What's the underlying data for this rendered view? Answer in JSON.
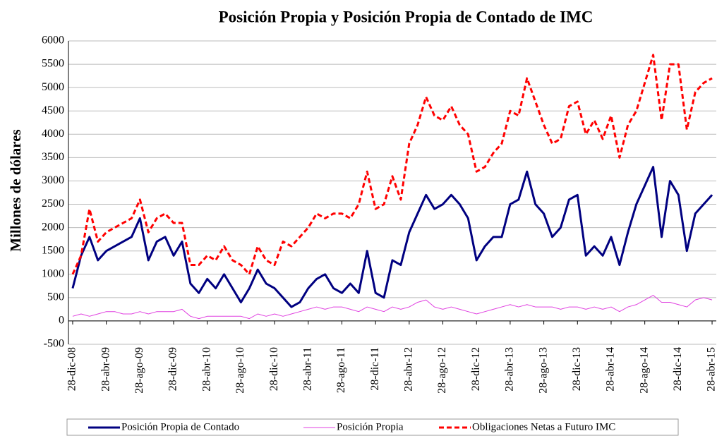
{
  "chart_data": {
    "type": "line",
    "title": "Posición Propia y Posición Propia de Contado de IMC",
    "y_label": "Millones de dólares",
    "categories": [
      "28-dic-08",
      null,
      null,
      null,
      "28-abr-09",
      null,
      null,
      null,
      "28-ago-09",
      null,
      null,
      null,
      "28-dic-09",
      null,
      null,
      null,
      "28-abr-10",
      null,
      null,
      null,
      "28-ago-10",
      null,
      null,
      null,
      "28-dic-10",
      null,
      null,
      null,
      "28-abr-11",
      null,
      null,
      null,
      "28-ago-11",
      null,
      null,
      null,
      "28-dic-11",
      null,
      null,
      null,
      "28-abr-12",
      null,
      null,
      null,
      "28-ago-12",
      null,
      null,
      null,
      "28-dic-12",
      null,
      null,
      null,
      "28-abr-13",
      null,
      null,
      null,
      "28-ago-13",
      null,
      null,
      null,
      "28-dic-13",
      null,
      null,
      null,
      "28-abr-14",
      null,
      null,
      null,
      "28-ago-14",
      null,
      null,
      null,
      "28-dic-14",
      null,
      null,
      null,
      "28-abr-15"
    ],
    "series": [
      {
        "name": "Posición Propia de Contado",
        "color": "#000080",
        "width": 3,
        "dash": "none",
        "values": [
          700,
          1400,
          1800,
          1300,
          1500,
          1600,
          1700,
          1800,
          2200,
          1300,
          1700,
          1800,
          1400,
          1700,
          800,
          600,
          900,
          700,
          1000,
          700,
          400,
          700,
          1100,
          800,
          700,
          500,
          300,
          400,
          700,
          900,
          1000,
          700,
          600,
          800,
          600,
          1500,
          600,
          500,
          1300,
          1200,
          1900,
          2300,
          2700,
          2400,
          2500,
          2700,
          2500,
          2200,
          1300,
          1600,
          1800,
          1800,
          2500,
          2600,
          3200,
          2500,
          2300,
          1800,
          2000,
          2600,
          2700,
          1400,
          1600,
          1400,
          1800,
          1200,
          1900,
          2500,
          2900,
          3300,
          1800,
          3000,
          2700,
          1500,
          2300,
          2500,
          2700
        ]
      },
      {
        "name": "Posición Propia",
        "color": "#e040e0",
        "width": 1,
        "dash": "none",
        "values": [
          100,
          150,
          100,
          150,
          200,
          200,
          150,
          150,
          200,
          150,
          200,
          200,
          200,
          250,
          100,
          50,
          100,
          100,
          100,
          100,
          100,
          50,
          150,
          100,
          150,
          100,
          150,
          200,
          250,
          300,
          250,
          300,
          300,
          250,
          200,
          300,
          250,
          200,
          300,
          250,
          300,
          400,
          450,
          300,
          250,
          300,
          250,
          200,
          150,
          200,
          250,
          300,
          350,
          300,
          350,
          300,
          300,
          300,
          250,
          300,
          300,
          250,
          300,
          250,
          300,
          200,
          300,
          350,
          450,
          550,
          400,
          400,
          350,
          300,
          450,
          500,
          450
        ]
      },
      {
        "name": "Obligaciones Netas a Futuro IMC",
        "color": "#ff0000",
        "width": 3,
        "dash": "7 4",
        "values": [
          1000,
          1400,
          2400,
          1700,
          1900,
          2000,
          2100,
          2200,
          2600,
          1900,
          2200,
          2300,
          2100,
          2100,
          1200,
          1200,
          1400,
          1300,
          1600,
          1300,
          1200,
          1000,
          1600,
          1300,
          1200,
          1700,
          1600,
          1800,
          2000,
          2300,
          2200,
          2300,
          2300,
          2200,
          2500,
          3200,
          2400,
          2500,
          3100,
          2600,
          3800,
          4200,
          4800,
          4400,
          4300,
          4600,
          4200,
          4000,
          3200,
          3300,
          3600,
          3800,
          4500,
          4400,
          5200,
          4700,
          4200,
          3800,
          3900,
          4600,
          4700,
          4000,
          4300,
          3900,
          4400,
          3500,
          4200,
          4500,
          5100,
          5700,
          4300,
          5500,
          5500,
          4100,
          4900,
          5100,
          5200
        ]
      }
    ],
    "ylim": [
      -500,
      6000
    ],
    "yticks": [
      -500,
      0,
      500,
      1000,
      1500,
      2000,
      2500,
      3000,
      3500,
      4000,
      4500,
      5000,
      5500,
      6000
    ],
    "grid": true
  }
}
